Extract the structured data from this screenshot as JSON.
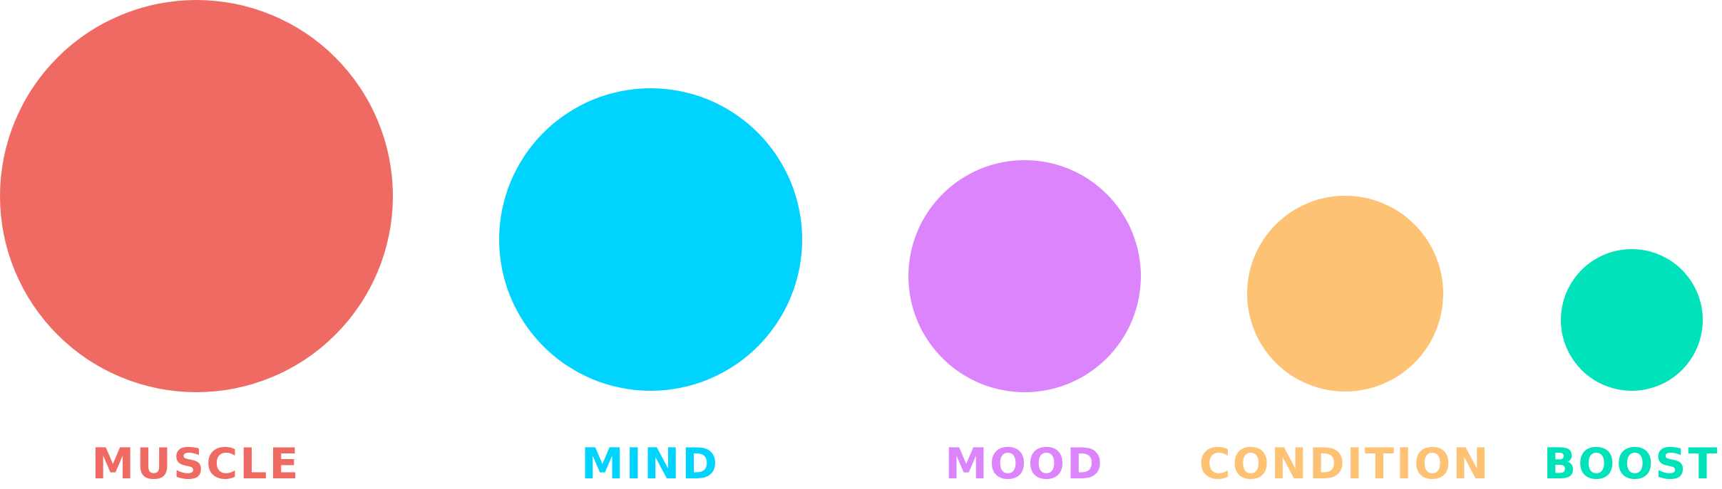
{
  "items": [
    {
      "label": "MUSCLE",
      "color": "#EF6A62"
    },
    {
      "label": "MIND",
      "color": "#00D4FE"
    },
    {
      "label": "MOOD",
      "color": "#DB84FC"
    },
    {
      "label": "CONDITION",
      "color": "#FEC274"
    },
    {
      "label": "BOOST",
      "color": "#00E3BA"
    }
  ]
}
